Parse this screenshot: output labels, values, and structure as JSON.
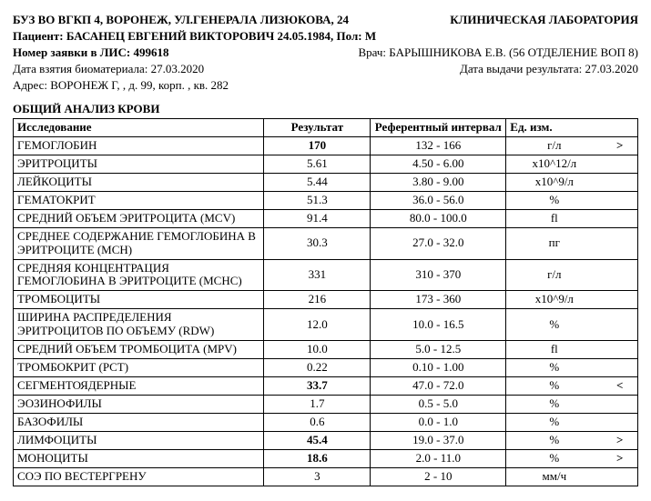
{
  "header": {
    "org": "БУЗ ВО ВГКП 4, ВОРОНЕЖ, УЛ.ГЕНЕРАЛА ЛИЗЮКОВА, 24",
    "lab": "КЛИНИЧЕСКАЯ ЛАБОРАТОРИЯ",
    "patient_label": "Пациент: ",
    "patient": "БАСАНЕЦ ЕВГЕНИЙ ВИКТОРОВИЧ 24.05.1984, Пол: М",
    "order_label": "Номер заявки в ЛИС: ",
    "order_no": "499618",
    "doctor_label": "Врач: ",
    "doctor": "БАРЫШНИКОВА Е.В. (56 ОТДЕЛЕНИЕ ВОП 8)",
    "sample_date_label": "Дата взятия биоматериала: ",
    "sample_date": "27.03.2020",
    "result_date_label": "Дата выдачи результата: ",
    "result_date": "27.03.2020",
    "address_label": "Адрес: ",
    "address": "ВОРОНЕЖ Г, , д. 99, корп. , кв. 282"
  },
  "section_title": "ОБЩИЙ АНАЛИЗ КРОВИ",
  "columns": {
    "name": "Исследование",
    "result": "Результат",
    "ref": "Референтный интервал",
    "unit": "Ед. изм."
  },
  "rows": [
    {
      "name": "ГЕМОГЛОБИН",
      "result": "170",
      "ref": "132 - 166",
      "unit": "г/л",
      "flag": ">",
      "bold": true
    },
    {
      "name": "ЭРИТРОЦИТЫ",
      "result": "5.61",
      "ref": "4.50 - 6.00",
      "unit": "x10^12/л",
      "flag": "",
      "bold": false
    },
    {
      "name": "ЛЕЙКОЦИТЫ",
      "result": "5.44",
      "ref": "3.80 - 9.00",
      "unit": "x10^9/л",
      "flag": "",
      "bold": false
    },
    {
      "name": "ГЕМАТОКРИТ",
      "result": "51.3",
      "ref": "36.0 - 56.0",
      "unit": "%",
      "flag": "",
      "bold": false
    },
    {
      "name": "СРЕДНИЙ ОБЪЕМ ЭРИТРОЦИТА (MCV)",
      "result": "91.4",
      "ref": "80.0 - 100.0",
      "unit": "fl",
      "flag": "",
      "bold": false
    },
    {
      "name": "СРЕДНЕЕ СОДЕРЖАНИЕ ГЕМОГЛОБИНА В ЭРИТРОЦИТЕ (MCH)",
      "result": "30.3",
      "ref": "27.0 - 32.0",
      "unit": "пг",
      "flag": "",
      "bold": false
    },
    {
      "name": "СРЕДНЯЯ КОНЦЕНТРАЦИЯ ГЕМОГЛОБИНА В ЭРИТРОЦИТЕ (MCHC)",
      "result": "331",
      "ref": "310 - 370",
      "unit": "г/л",
      "flag": "",
      "bold": false
    },
    {
      "name": "ТРОМБОЦИТЫ",
      "result": "216",
      "ref": "173 - 360",
      "unit": "x10^9/л",
      "flag": "",
      "bold": false
    },
    {
      "name": "ШИРИНА РАСПРЕДЕЛЕНИЯ ЭРИТРОЦИТОВ ПО ОБЪЕМУ (RDW)",
      "result": "12.0",
      "ref": "10.0 - 16.5",
      "unit": "%",
      "flag": "",
      "bold": false
    },
    {
      "name": "СРЕДНИЙ ОБЪЕМ ТРОМБОЦИТА (MPV)",
      "result": "10.0",
      "ref": "5.0 - 12.5",
      "unit": "fl",
      "flag": "",
      "bold": false
    },
    {
      "name": "ТРОМБОКРИТ (PCT)",
      "result": "0.22",
      "ref": "0.10 - 1.00",
      "unit": "%",
      "flag": "",
      "bold": false
    },
    {
      "name": "СЕГМЕНТОЯДЕРНЫЕ",
      "result": "33.7",
      "ref": "47.0 - 72.0",
      "unit": "%",
      "flag": "<",
      "bold": true
    },
    {
      "name": "ЭОЗИНОФИЛЫ",
      "result": "1.7",
      "ref": "0.5 - 5.0",
      "unit": "%",
      "flag": "",
      "bold": false
    },
    {
      "name": "БАЗОФИЛЫ",
      "result": "0.6",
      "ref": "0.0 - 1.0",
      "unit": "%",
      "flag": "",
      "bold": false
    },
    {
      "name": "ЛИМФОЦИТЫ",
      "result": "45.4",
      "ref": "19.0 - 37.0",
      "unit": "%",
      "flag": ">",
      "bold": true
    },
    {
      "name": "МОНОЦИТЫ",
      "result": "18.6",
      "ref": "2.0 - 11.0",
      "unit": "%",
      "flag": ">",
      "bold": true
    },
    {
      "name": "СОЭ ПО ВЕСТЕРГРЕНУ",
      "result": "3",
      "ref": "2 - 10",
      "unit": "мм/ч",
      "flag": "",
      "bold": false
    }
  ]
}
